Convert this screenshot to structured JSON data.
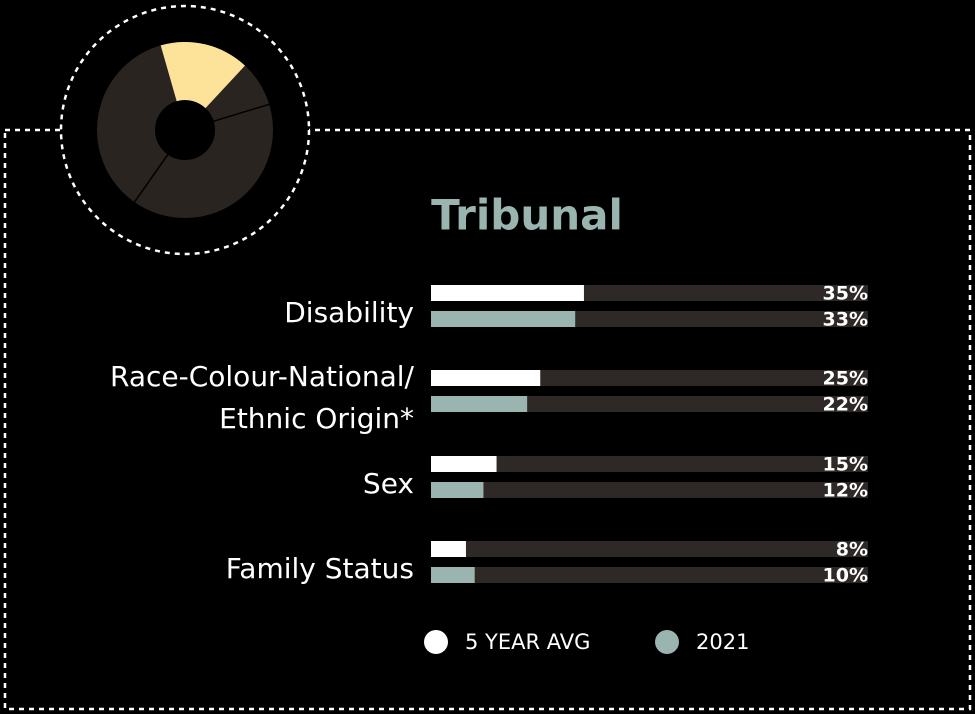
{
  "chart_data": {
    "type": "bar",
    "orientation": "horizontal",
    "title": "Tribunal",
    "categories": [
      "Disability",
      "Race-Colour-National/ Ethnic Origin*",
      "Sex",
      "Family Status"
    ],
    "series": [
      {
        "name": "5 YEAR AVG",
        "color": "#ffffff",
        "values": [
          35,
          25,
          15,
          8
        ],
        "value_labels": [
          "35%",
          "25%",
          "15%",
          "8%"
        ]
      },
      {
        "name": "2021",
        "color": "#9ab5b0",
        "values": [
          33,
          22,
          12,
          10
        ],
        "value_labels": [
          "33%",
          "22%",
          "12%",
          "10%"
        ]
      }
    ],
    "xlim": [
      0,
      100
    ],
    "track_color": "#2e2826"
  }
}
